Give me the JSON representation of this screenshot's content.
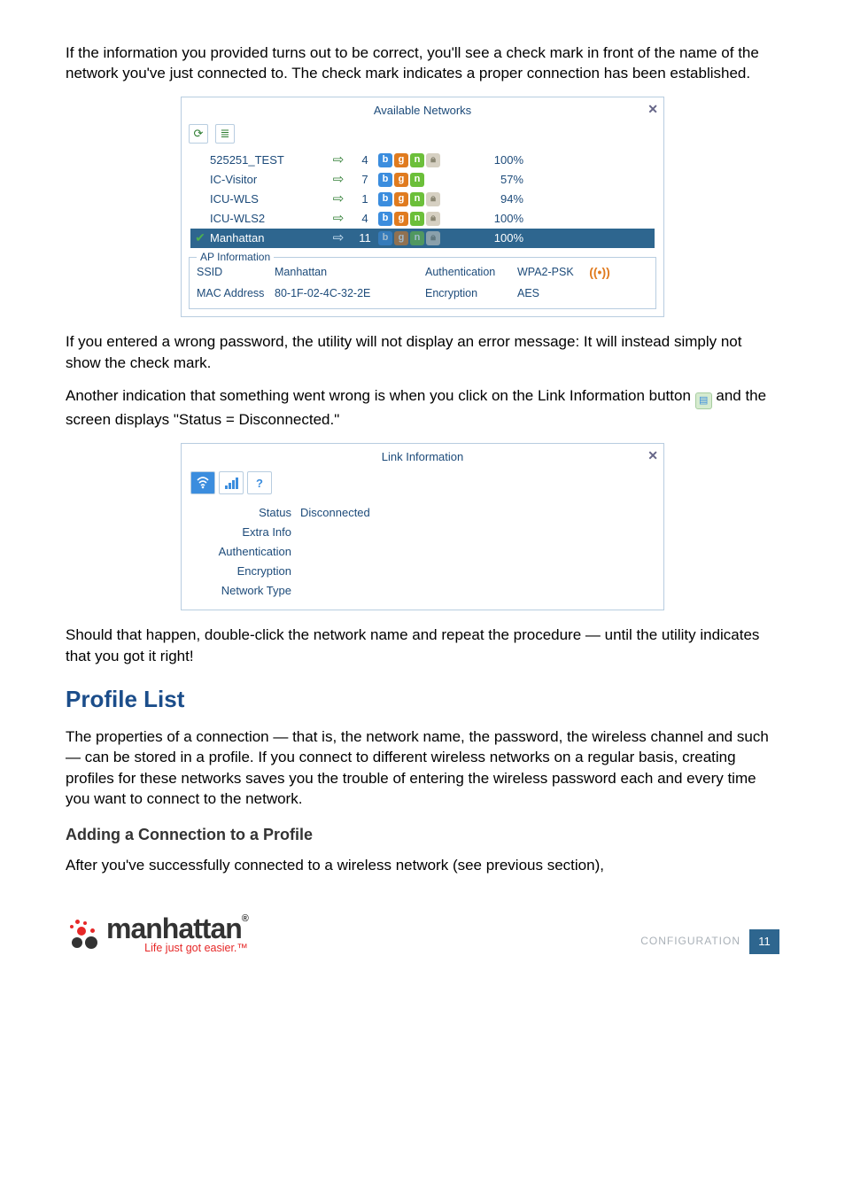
{
  "intro": "If the information you provided turns out to be correct, you'll see a check mark in front of the name of the network you've just connected to. The check mark indicates a proper connection has been established.",
  "avail": {
    "title": "Available Networks",
    "rows": [
      {
        "check": false,
        "name": "525251_TEST",
        "chan": "4",
        "sig": "100%",
        "b": 1,
        "g": 1,
        "n": 1,
        "l": 1
      },
      {
        "check": false,
        "name": "IC-Visitor",
        "chan": "7",
        "sig": "57%",
        "b": 1,
        "g": 1,
        "n": 1,
        "l": 0
      },
      {
        "check": false,
        "name": "ICU-WLS",
        "chan": "1",
        "sig": "94%",
        "b": 1,
        "g": 1,
        "n": 1,
        "l": 1
      },
      {
        "check": false,
        "name": "ICU-WLS2",
        "chan": "4",
        "sig": "100%",
        "b": 1,
        "g": 1,
        "n": 1,
        "l": 1
      },
      {
        "check": true,
        "name": "Manhattan",
        "chan": "11",
        "sig": "100%",
        "b": 1,
        "g": 1,
        "n": 1,
        "l": 1,
        "selected": true
      }
    ],
    "ap_legend": "AP Information",
    "ap": {
      "ssid_label": "SSID",
      "ssid_val": "Manhattan",
      "auth_label": "Authentication",
      "auth_val": "WPA2-PSK",
      "mac_label": "MAC Address",
      "mac_val": "80-1F-02-4C-32-2E",
      "enc_label": "Encryption",
      "enc_val": "AES"
    }
  },
  "para2": "If you entered a wrong password, the utility will not display an error message: It will instead simply not show the check mark.",
  "para3a": "Another indication that something went wrong is when you click on the Link Information button ",
  "para3b": " and the screen displays \"Status = Disconnected.\"",
  "link": {
    "title": "Link Information",
    "rows": [
      {
        "label": "Status",
        "value": "Disconnected"
      },
      {
        "label": "Extra Info",
        "value": ""
      },
      {
        "label": "Authentication",
        "value": ""
      },
      {
        "label": "Encryption",
        "value": ""
      },
      {
        "label": "Network Type",
        "value": ""
      }
    ]
  },
  "para4": "Should that happen, double-click the network name and repeat the procedure — until the utility indicates that you got it right!",
  "h2": "Profile List",
  "para5": "The properties of a connection — that is, the network name, the password, the wireless channel and such — can be stored in a profile. If you connect to different wireless networks on a regular basis, creating profiles for these networks saves you the trouble of entering the wireless password each and every time you want to connect to the network.",
  "h3": "Adding a Connection to a Profile",
  "para6": "After you've successfully connected to a wireless network (see previous section),",
  "footer": {
    "logo_name": "manhattan",
    "logo_tag": "Life just got easier.™",
    "page_label": "CONFIGURATION",
    "page_num": "11"
  }
}
